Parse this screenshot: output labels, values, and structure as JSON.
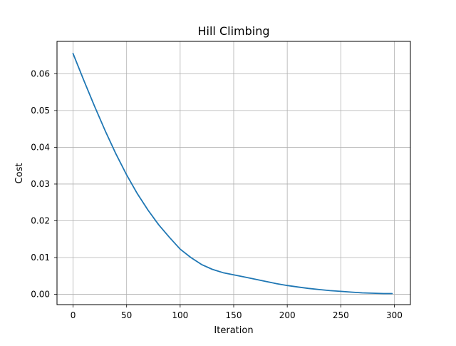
{
  "chart_data": {
    "type": "line",
    "title": "Hill Climbing",
    "xlabel": "Iteration",
    "ylabel": "Cost",
    "xlim": [
      -15,
      315
    ],
    "ylim": [
      -0.0028,
      0.0688
    ],
    "xticks": [
      0,
      50,
      100,
      150,
      200,
      250,
      300
    ],
    "yticks": [
      0.0,
      0.01,
      0.02,
      0.03,
      0.04,
      0.05,
      0.06
    ],
    "xtick_labels": [
      "0",
      "50",
      "100",
      "150",
      "200",
      "250",
      "300"
    ],
    "ytick_labels": [
      "0.00",
      "0.01",
      "0.02",
      "0.03",
      "0.04",
      "0.05",
      "0.06"
    ],
    "grid": true,
    "legend": "none",
    "line_color": "#1f77b4",
    "series": [
      {
        "x": [
          0,
          10,
          20,
          30,
          40,
          50,
          60,
          70,
          80,
          90,
          100,
          110,
          120,
          130,
          140,
          150,
          160,
          170,
          180,
          190,
          200,
          210,
          220,
          230,
          240,
          250,
          260,
          270,
          280,
          290,
          298
        ],
        "values": [
          0.0655,
          0.0582,
          0.0512,
          0.0445,
          0.0382,
          0.0325,
          0.0274,
          0.0229,
          0.0189,
          0.0155,
          0.0123,
          0.01,
          0.0081,
          0.0068,
          0.0059,
          0.0053,
          0.0047,
          0.0041,
          0.0035,
          0.0029,
          0.0024,
          0.002,
          0.0016,
          0.0013,
          0.001,
          0.0008,
          0.0006,
          0.0004,
          0.0003,
          0.0002,
          0.0002
        ]
      }
    ]
  }
}
